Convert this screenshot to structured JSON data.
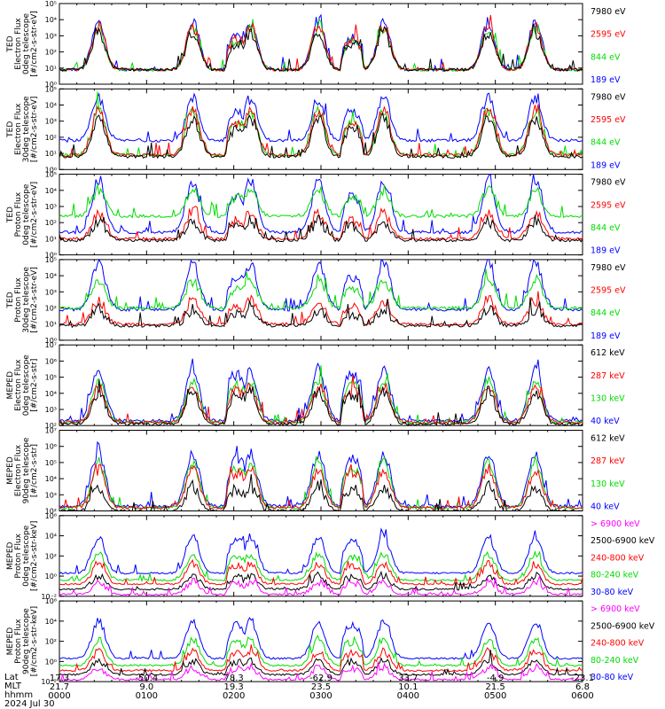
{
  "chart_data": {
    "type": "line",
    "x_ticks": [
      "0000",
      "0100",
      "0200",
      "0300",
      "0400",
      "0500",
      "0600"
    ],
    "lat": [
      "17.3",
      "-50.4",
      "78.3",
      "-62.9",
      "33.7",
      "-4.9",
      "-23.1"
    ],
    "mlt": [
      "21.7",
      "9.0",
      "19.3",
      "23.5",
      "10.1",
      "21.5",
      "6.8"
    ],
    "footer": {
      "lat_label": "Lat",
      "mlt_label": "MLT",
      "hhmm_label": "hhmm",
      "date": "2024 Jul 30"
    },
    "colors": {
      "black": "#000000",
      "red": "#ff0000",
      "green": "#00dd00",
      "blue": "#0000ff",
      "magenta": "#ff00ff"
    },
    "panels": [
      {
        "ylabel": [
          "TED",
          "Electron Flux",
          "0deg telescope",
          "[#/cm2-s-str-eV]"
        ],
        "ymin": 0,
        "ymax": 5,
        "ticks": [
          "10⁰",
          "10¹",
          "10²",
          "10³",
          "10⁴",
          "10⁵"
        ],
        "series": [
          {
            "name": "7980 eV",
            "color": "#000000",
            "base": 0.9,
            "amp": 2.3
          },
          {
            "name": "2595 eV",
            "color": "#ff0000",
            "base": 0.9,
            "amp": 2.7
          },
          {
            "name": "844 eV",
            "color": "#00dd00",
            "base": 0.9,
            "amp": 2.6
          },
          {
            "name": "189 eV",
            "color": "#0000ff",
            "base": 0.9,
            "amp": 2.9
          }
        ]
      },
      {
        "ylabel": [
          "TED",
          "Electron Flux",
          "30deg telescope",
          "[#/cm2-s-str-eV]"
        ],
        "ymin": 0,
        "ymax": 5,
        "ticks": [
          "10⁰",
          "10¹",
          "10²",
          "10³",
          "10⁴",
          "10⁵"
        ],
        "series": [
          {
            "name": "7980 eV",
            "color": "#000000",
            "base": 0.8,
            "amp": 2.4
          },
          {
            "name": "2595 eV",
            "color": "#ff0000",
            "base": 0.9,
            "amp": 2.8
          },
          {
            "name": "844 eV",
            "color": "#00dd00",
            "base": 0.9,
            "amp": 2.8
          },
          {
            "name": "189 eV",
            "color": "#0000ff",
            "base": 1.8,
            "amp": 2.6
          }
        ]
      },
      {
        "ylabel": [
          "TED",
          "Proton Flux",
          "0deg telescope",
          "[#/cm2-s-str-eV]"
        ],
        "ymin": 0,
        "ymax": 5,
        "ticks": [
          "10⁰",
          "10¹",
          "10²",
          "10³",
          "10⁴",
          "10⁵"
        ],
        "series": [
          {
            "name": "7980 eV",
            "color": "#000000",
            "base": 0.9,
            "amp": 1.2
          },
          {
            "name": "2595 eV",
            "color": "#ff0000",
            "base": 1.0,
            "amp": 1.6
          },
          {
            "name": "844 eV",
            "color": "#00dd00",
            "base": 2.4,
            "amp": 1.6
          },
          {
            "name": "189 eV",
            "color": "#0000ff",
            "base": 1.4,
            "amp": 3.2
          }
        ]
      },
      {
        "ylabel": [
          "TED",
          "Proton Flux",
          "30deg telescope",
          "[#/cm2-s-str-eV]"
        ],
        "ymin": 0,
        "ymax": 5,
        "ticks": [
          "10⁰",
          "10¹",
          "10²",
          "10³",
          "10⁴",
          "10⁵"
        ],
        "series": [
          {
            "name": "7980 eV",
            "color": "#000000",
            "base": 0.9,
            "amp": 1.0
          },
          {
            "name": "2595 eV",
            "color": "#ff0000",
            "base": 1.0,
            "amp": 1.5
          },
          {
            "name": "844 eV",
            "color": "#00dd00",
            "base": 2.0,
            "amp": 1.7
          },
          {
            "name": "189 eV",
            "color": "#0000ff",
            "base": 1.9,
            "amp": 2.9
          }
        ]
      },
      {
        "ylabel": [
          "MEPED",
          "Electron Flux",
          "0deg telescope",
          "[#/cm2-s-str]"
        ],
        "ymin": 2,
        "ymax": 7,
        "ticks": [
          "10²",
          "10³",
          "10⁴",
          "10⁵",
          "10⁶",
          "10⁷"
        ],
        "series": [
          {
            "name": "612 keV",
            "color": "#000000",
            "base": 2.1,
            "amp": 2.0
          },
          {
            "name": "287 keV",
            "color": "#ff0000",
            "base": 2.2,
            "amp": 2.2
          },
          {
            "name": "130 keV",
            "color": "#00dd00",
            "base": 2.2,
            "amp": 2.6
          },
          {
            "name": "40 keV",
            "color": "#0000ff",
            "base": 2.3,
            "amp": 3.2
          }
        ]
      },
      {
        "ylabel": [
          "MEPED",
          "Electron Flux",
          "90deg telescope",
          "[#/cm2-s-str]"
        ],
        "ymin": 2,
        "ymax": 7,
        "ticks": [
          "10²",
          "10³",
          "10⁴",
          "10⁵",
          "10⁶",
          "10⁷"
        ],
        "series": [
          {
            "name": "612 keV",
            "color": "#000000",
            "base": 2.0,
            "amp": 1.5
          },
          {
            "name": "287 keV",
            "color": "#ff0000",
            "base": 2.2,
            "amp": 2.4
          },
          {
            "name": "130 keV",
            "color": "#00dd00",
            "base": 2.2,
            "amp": 2.8
          },
          {
            "name": "40 keV",
            "color": "#0000ff",
            "base": 2.3,
            "amp": 3.3
          }
        ]
      },
      {
        "ylabel": [
          "MEPED",
          "Proton Flux",
          "0deg telescope",
          "[#/cm2-s-str-keV]"
        ],
        "ymin": -2,
        "ymax": 6,
        "ticks": [
          "10⁻²",
          "10⁰",
          "10²",
          "10⁴",
          "10⁶"
        ],
        "series": [
          {
            "name": "> 6900 keV",
            "color": "#ff00ff",
            "base": -1.8,
            "amp": 1.2
          },
          {
            "name": "2500-6900 keV",
            "color": "#000000",
            "base": -1.3,
            "amp": 1.3
          },
          {
            "name": "240-800 keV",
            "color": "#ff0000",
            "base": -0.8,
            "amp": 2.0
          },
          {
            "name": "80-240 keV",
            "color": "#00dd00",
            "base": -0.4,
            "amp": 2.6
          },
          {
            "name": "30-80 keV",
            "color": "#0000ff",
            "base": 0.3,
            "amp": 3.6
          }
        ]
      },
      {
        "ylabel": [
          "MEPED",
          "Proton Flux",
          "90deg telescope",
          "[#/cm2-s-str-keV]"
        ],
        "ymin": -2,
        "ymax": 6,
        "ticks": [
          "10⁻²",
          "10⁰",
          "10²",
          "10⁴",
          "10⁶"
        ],
        "series": [
          {
            "name": "> 6900 keV",
            "color": "#ff00ff",
            "base": -1.8,
            "amp": 1.2
          },
          {
            "name": "2500-6900 keV",
            "color": "#000000",
            "base": -1.3,
            "amp": 1.4
          },
          {
            "name": "240-800 keV",
            "color": "#ff0000",
            "base": -0.9,
            "amp": 1.9
          },
          {
            "name": "80-240 keV",
            "color": "#00dd00",
            "base": -0.4,
            "amp": 2.6
          },
          {
            "name": "30-80 keV",
            "color": "#0000ff",
            "base": 0.3,
            "amp": 3.7
          }
        ]
      }
    ],
    "bursts": [
      0.075,
      0.255,
      0.365,
      0.495,
      0.62,
      0.82,
      0.91
    ],
    "auroral_arcs": [
      0.34,
      0.56
    ]
  }
}
